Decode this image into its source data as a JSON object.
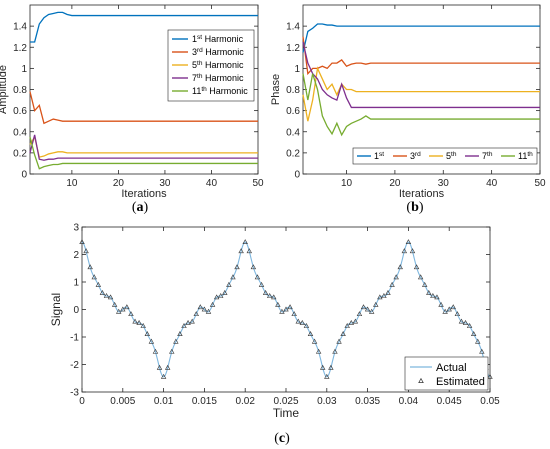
{
  "chart_data": [
    {
      "type": "line",
      "panel": "a",
      "caption": "(a)",
      "xlabel": "Iterations",
      "ylabel": "Amplitude",
      "xlim": [
        1,
        50
      ],
      "ylim": [
        0,
        1.6
      ],
      "xticks": [
        10,
        20,
        30,
        40,
        50
      ],
      "yticks": [
        0,
        0.2,
        0.4,
        0.6,
        0.8,
        1,
        1.2,
        1.4
      ],
      "legend_position": "top-right",
      "x": [
        1,
        2,
        3,
        4,
        5,
        6,
        7,
        8,
        9,
        10,
        11,
        12,
        13,
        14,
        15,
        16,
        17,
        18,
        19,
        20,
        22,
        25,
        30,
        35,
        40,
        45,
        50
      ],
      "series": [
        {
          "name": "1st Harmonic",
          "base": "1",
          "sup": "st",
          "suffix": " Harmonic",
          "color": "#0072BD",
          "values": [
            1.25,
            1.25,
            1.42,
            1.48,
            1.51,
            1.52,
            1.53,
            1.53,
            1.51,
            1.5,
            1.5,
            1.5,
            1.5,
            1.5,
            1.5,
            1.5,
            1.5,
            1.5,
            1.5,
            1.5,
            1.5,
            1.5,
            1.5,
            1.5,
            1.5,
            1.5,
            1.5
          ]
        },
        {
          "name": "3rd Harmonic",
          "base": "3",
          "sup": "rd",
          "suffix": " Harmonic",
          "color": "#D95319",
          "values": [
            0.78,
            0.6,
            0.65,
            0.48,
            0.5,
            0.52,
            0.51,
            0.5,
            0.5,
            0.5,
            0.5,
            0.5,
            0.5,
            0.5,
            0.5,
            0.5,
            0.5,
            0.5,
            0.5,
            0.5,
            0.5,
            0.5,
            0.5,
            0.5,
            0.5,
            0.5,
            0.5
          ]
        },
        {
          "name": "5th Harmonic",
          "base": "5",
          "sup": "th",
          "suffix": " Harmonic",
          "color": "#EDB120",
          "values": [
            0.28,
            0.35,
            0.16,
            0.17,
            0.19,
            0.2,
            0.21,
            0.21,
            0.2,
            0.2,
            0.2,
            0.2,
            0.2,
            0.2,
            0.2,
            0.2,
            0.2,
            0.2,
            0.2,
            0.2,
            0.2,
            0.2,
            0.2,
            0.2,
            0.2,
            0.2,
            0.2
          ]
        },
        {
          "name": "7th Harmonic",
          "base": "7",
          "sup": "th",
          "suffix": " Harmonic",
          "color": "#7E2F8E",
          "values": [
            0.2,
            0.37,
            0.14,
            0.13,
            0.14,
            0.14,
            0.15,
            0.15,
            0.15,
            0.15,
            0.15,
            0.15,
            0.15,
            0.15,
            0.15,
            0.15,
            0.15,
            0.15,
            0.15,
            0.15,
            0.15,
            0.15,
            0.15,
            0.15,
            0.15,
            0.15,
            0.15
          ]
        },
        {
          "name": "11th Harmonic",
          "base": "11",
          "sup": "th",
          "suffix": " Harmonic",
          "color": "#77AC30",
          "values": [
            0.35,
            0.18,
            0.05,
            0.07,
            0.08,
            0.09,
            0.09,
            0.1,
            0.1,
            0.1,
            0.1,
            0.1,
            0.1,
            0.1,
            0.1,
            0.1,
            0.1,
            0.1,
            0.1,
            0.1,
            0.1,
            0.1,
            0.1,
            0.1,
            0.1,
            0.1,
            0.1
          ]
        }
      ]
    },
    {
      "type": "line",
      "panel": "b",
      "caption": "(b)",
      "xlabel": "Iterations",
      "ylabel": "Phase",
      "xlim": [
        1,
        50
      ],
      "ylim": [
        0,
        1.6
      ],
      "xticks": [
        10,
        20,
        30,
        40,
        50
      ],
      "yticks": [
        0,
        0.2,
        0.4,
        0.6,
        0.8,
        1,
        1.2,
        1.4
      ],
      "legend_position": "bottom-right",
      "x": [
        1,
        2,
        3,
        4,
        5,
        6,
        7,
        8,
        9,
        10,
        11,
        12,
        13,
        14,
        15,
        16,
        17,
        18,
        19,
        20,
        22,
        25,
        30,
        35,
        40,
        45,
        50
      ],
      "series": [
        {
          "name": "1st",
          "base": "1",
          "sup": "st",
          "suffix": "",
          "color": "#0072BD",
          "values": [
            1.15,
            1.35,
            1.38,
            1.42,
            1.42,
            1.41,
            1.41,
            1.4,
            1.4,
            1.4,
            1.4,
            1.4,
            1.4,
            1.4,
            1.4,
            1.4,
            1.4,
            1.4,
            1.4,
            1.4,
            1.4,
            1.4,
            1.4,
            1.4,
            1.4,
            1.4,
            1.4
          ]
        },
        {
          "name": "3rd",
          "base": "3",
          "sup": "rd",
          "suffix": "",
          "color": "#D95319",
          "values": [
            1.3,
            0.95,
            1.0,
            1.0,
            1.02,
            1.0,
            1.05,
            1.05,
            1.08,
            1.02,
            1.04,
            1.05,
            1.05,
            1.04,
            1.05,
            1.05,
            1.05,
            1.05,
            1.05,
            1.05,
            1.05,
            1.05,
            1.05,
            1.05,
            1.05,
            1.05,
            1.05
          ]
        },
        {
          "name": "5th",
          "base": "5",
          "sup": "th",
          "suffix": "",
          "color": "#EDB120",
          "values": [
            0.75,
            0.5,
            0.7,
            1.0,
            0.9,
            0.8,
            0.85,
            0.75,
            0.85,
            0.8,
            0.8,
            0.78,
            0.78,
            0.78,
            0.78,
            0.78,
            0.78,
            0.78,
            0.78,
            0.78,
            0.78,
            0.78,
            0.78,
            0.78,
            0.78,
            0.78,
            0.78
          ]
        },
        {
          "name": "7th",
          "base": "7",
          "sup": "th",
          "suffix": "",
          "color": "#7E2F8E",
          "values": [
            1.25,
            1.05,
            0.95,
            0.9,
            0.8,
            0.75,
            0.72,
            0.7,
            0.85,
            0.72,
            0.63,
            0.63,
            0.63,
            0.63,
            0.63,
            0.63,
            0.63,
            0.63,
            0.63,
            0.63,
            0.63,
            0.63,
            0.63,
            0.63,
            0.63,
            0.63,
            0.63
          ]
        },
        {
          "name": "11th",
          "base": "11",
          "sup": "th",
          "suffix": "",
          "color": "#77AC30",
          "values": [
            0.95,
            0.7,
            0.95,
            0.8,
            0.55,
            0.45,
            0.38,
            0.48,
            0.37,
            0.45,
            0.48,
            0.5,
            0.52,
            0.55,
            0.52,
            0.52,
            0.52,
            0.52,
            0.52,
            0.52,
            0.52,
            0.52,
            0.52,
            0.52,
            0.52,
            0.52,
            0.52
          ]
        }
      ]
    },
    {
      "type": "line",
      "panel": "c",
      "caption": "(c)",
      "xlabel": "Time",
      "ylabel": "Signal",
      "xlim": [
        0,
        0.05
      ],
      "ylim": [
        -3,
        3
      ],
      "xticks": [
        0,
        0.005,
        0.01,
        0.015,
        0.02,
        0.025,
        0.03,
        0.035,
        0.04,
        0.045,
        0.05
      ],
      "xtick_labels": [
        "0",
        "0.005",
        "0.01",
        "0.015",
        "0.02",
        "0.025",
        "0.03",
        "0.035",
        "0.04",
        "0.045",
        "0.05"
      ],
      "yticks": [
        -3,
        -2,
        -1,
        0,
        1,
        2,
        3
      ],
      "legend_position": "bottom-right",
      "signal_components": {
        "fundamental_hz": 50,
        "amplitudes": [
          1.5,
          0.5,
          0.2,
          0.15,
          0.1
        ],
        "harmonic_orders": [
          1,
          3,
          5,
          7,
          11
        ]
      },
      "series": [
        {
          "name": "Actual",
          "color": "#7EB6DE",
          "marker": "none"
        },
        {
          "name": "Estimated",
          "color": "#333333",
          "marker": "triangle"
        }
      ]
    }
  ]
}
